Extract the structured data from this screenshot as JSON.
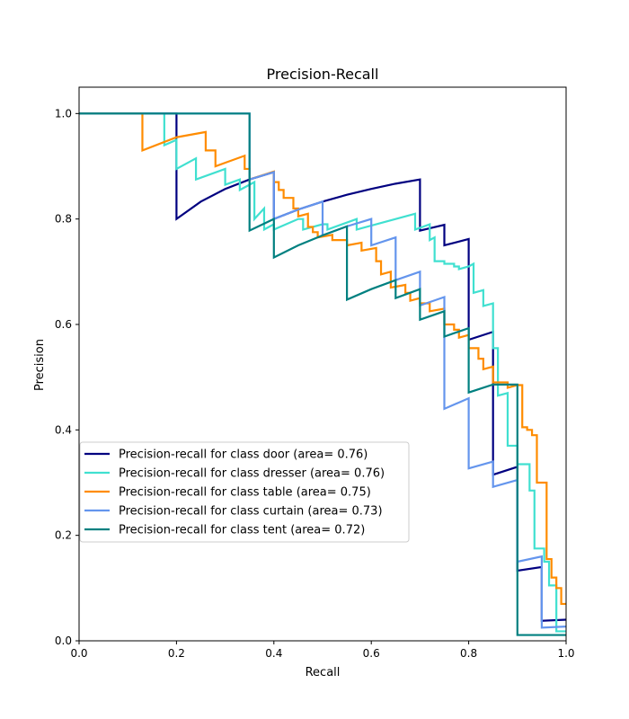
{
  "chart_data": {
    "type": "line",
    "title": "Precision-Recall",
    "xlabel": "Recall",
    "ylabel": "Precision",
    "xlim": [
      0.0,
      1.0
    ],
    "ylim": [
      0.0,
      1.05
    ],
    "xticks": [
      0.0,
      0.2,
      0.4,
      0.6,
      0.8,
      1.0
    ],
    "xtick_labels": [
      "0.0",
      "0.2",
      "0.4",
      "0.6",
      "0.8",
      "1.0"
    ],
    "yticks": [
      0.0,
      0.2,
      0.4,
      0.6,
      0.8,
      1.0
    ],
    "ytick_labels": [
      "0.0",
      "0.2",
      "0.4",
      "0.6",
      "0.8",
      "1.0"
    ],
    "grid": false,
    "legend_position": "lower-left",
    "series": [
      {
        "name": "Precision-recall for class door (area= 0.76)",
        "color": "#000080",
        "points": [
          [
            0.0,
            1.0
          ],
          [
            0.2,
            1.0
          ],
          [
            0.2,
            0.8
          ],
          [
            0.25,
            0.833
          ],
          [
            0.3,
            0.857
          ],
          [
            0.35,
            0.875
          ],
          [
            0.4,
            0.889
          ],
          [
            0.4,
            0.8
          ],
          [
            0.45,
            0.818
          ],
          [
            0.5,
            0.833
          ],
          [
            0.55,
            0.846
          ],
          [
            0.6,
            0.857
          ],
          [
            0.65,
            0.867
          ],
          [
            0.7,
            0.875
          ],
          [
            0.7,
            0.778
          ],
          [
            0.75,
            0.789
          ],
          [
            0.75,
            0.75
          ],
          [
            0.8,
            0.762
          ],
          [
            0.8,
            0.571
          ],
          [
            0.85,
            0.586
          ],
          [
            0.85,
            0.315
          ],
          [
            0.9,
            0.33
          ],
          [
            0.9,
            0.133
          ],
          [
            0.95,
            0.14
          ],
          [
            0.95,
            0.038
          ],
          [
            1.0,
            0.04
          ]
        ]
      },
      {
        "name": "Precision-recall for class dresser (area= 0.76)",
        "color": "#40E0D0",
        "points": [
          [
            0.0,
            1.0
          ],
          [
            0.175,
            1.0
          ],
          [
            0.175,
            0.94
          ],
          [
            0.2,
            0.95
          ],
          [
            0.2,
            0.895
          ],
          [
            0.24,
            0.915
          ],
          [
            0.24,
            0.875
          ],
          [
            0.3,
            0.895
          ],
          [
            0.3,
            0.865
          ],
          [
            0.33,
            0.875
          ],
          [
            0.33,
            0.855
          ],
          [
            0.36,
            0.87
          ],
          [
            0.36,
            0.8
          ],
          [
            0.38,
            0.82
          ],
          [
            0.38,
            0.78
          ],
          [
            0.4,
            0.79
          ],
          [
            0.4,
            0.78
          ],
          [
            0.45,
            0.8
          ],
          [
            0.46,
            0.8
          ],
          [
            0.46,
            0.78
          ],
          [
            0.5,
            0.79
          ],
          [
            0.51,
            0.79
          ],
          [
            0.51,
            0.78
          ],
          [
            0.57,
            0.8
          ],
          [
            0.57,
            0.78
          ],
          [
            0.69,
            0.81
          ],
          [
            0.69,
            0.78
          ],
          [
            0.72,
            0.79
          ],
          [
            0.72,
            0.76
          ],
          [
            0.73,
            0.765
          ],
          [
            0.73,
            0.72
          ],
          [
            0.75,
            0.72
          ],
          [
            0.75,
            0.715
          ],
          [
            0.77,
            0.715
          ],
          [
            0.77,
            0.71
          ],
          [
            0.78,
            0.71
          ],
          [
            0.78,
            0.705
          ],
          [
            0.8,
            0.71
          ],
          [
            0.81,
            0.715
          ],
          [
            0.81,
            0.66
          ],
          [
            0.83,
            0.665
          ],
          [
            0.83,
            0.635
          ],
          [
            0.85,
            0.64
          ],
          [
            0.85,
            0.555
          ],
          [
            0.86,
            0.555
          ],
          [
            0.86,
            0.465
          ],
          [
            0.88,
            0.47
          ],
          [
            0.88,
            0.37
          ],
          [
            0.9,
            0.37
          ],
          [
            0.9,
            0.335
          ],
          [
            0.925,
            0.335
          ],
          [
            0.925,
            0.285
          ],
          [
            0.935,
            0.285
          ],
          [
            0.935,
            0.175
          ],
          [
            0.955,
            0.175
          ],
          [
            0.955,
            0.15
          ],
          [
            0.965,
            0.15
          ],
          [
            0.965,
            0.105
          ],
          [
            0.98,
            0.105
          ],
          [
            0.98,
            0.018
          ],
          [
            1.0,
            0.018
          ]
        ]
      },
      {
        "name": "Precision-recall for class table (area= 0.75)",
        "color": "#FF8C00",
        "points": [
          [
            0.0,
            1.0
          ],
          [
            0.13,
            1.0
          ],
          [
            0.13,
            0.93
          ],
          [
            0.2,
            0.955
          ],
          [
            0.26,
            0.965
          ],
          [
            0.26,
            0.93
          ],
          [
            0.28,
            0.93
          ],
          [
            0.28,
            0.9
          ],
          [
            0.34,
            0.92
          ],
          [
            0.34,
            0.895
          ],
          [
            0.35,
            0.895
          ],
          [
            0.35,
            0.875
          ],
          [
            0.4,
            0.89
          ],
          [
            0.4,
            0.87
          ],
          [
            0.41,
            0.87
          ],
          [
            0.41,
            0.855
          ],
          [
            0.42,
            0.855
          ],
          [
            0.42,
            0.84
          ],
          [
            0.44,
            0.84
          ],
          [
            0.44,
            0.82
          ],
          [
            0.45,
            0.82
          ],
          [
            0.45,
            0.805
          ],
          [
            0.47,
            0.81
          ],
          [
            0.47,
            0.785
          ],
          [
            0.48,
            0.785
          ],
          [
            0.48,
            0.775
          ],
          [
            0.49,
            0.775
          ],
          [
            0.49,
            0.765
          ],
          [
            0.52,
            0.77
          ],
          [
            0.52,
            0.76
          ],
          [
            0.55,
            0.76
          ],
          [
            0.55,
            0.75
          ],
          [
            0.58,
            0.755
          ],
          [
            0.58,
            0.74
          ],
          [
            0.61,
            0.745
          ],
          [
            0.61,
            0.72
          ],
          [
            0.62,
            0.72
          ],
          [
            0.62,
            0.695
          ],
          [
            0.64,
            0.7
          ],
          [
            0.64,
            0.67
          ],
          [
            0.67,
            0.675
          ],
          [
            0.67,
            0.66
          ],
          [
            0.68,
            0.66
          ],
          [
            0.68,
            0.645
          ],
          [
            0.7,
            0.65
          ],
          [
            0.7,
            0.64
          ],
          [
            0.72,
            0.64
          ],
          [
            0.72,
            0.625
          ],
          [
            0.75,
            0.63
          ],
          [
            0.75,
            0.6
          ],
          [
            0.77,
            0.6
          ],
          [
            0.77,
            0.59
          ],
          [
            0.78,
            0.59
          ],
          [
            0.78,
            0.575
          ],
          [
            0.8,
            0.58
          ],
          [
            0.8,
            0.555
          ],
          [
            0.82,
            0.555
          ],
          [
            0.82,
            0.535
          ],
          [
            0.83,
            0.535
          ],
          [
            0.83,
            0.515
          ],
          [
            0.85,
            0.52
          ],
          [
            0.85,
            0.49
          ],
          [
            0.88,
            0.49
          ],
          [
            0.88,
            0.48
          ],
          [
            0.9,
            0.485
          ],
          [
            0.91,
            0.485
          ],
          [
            0.91,
            0.405
          ],
          [
            0.92,
            0.405
          ],
          [
            0.92,
            0.4
          ],
          [
            0.93,
            0.4
          ],
          [
            0.93,
            0.39
          ],
          [
            0.94,
            0.39
          ],
          [
            0.94,
            0.3
          ],
          [
            0.96,
            0.3
          ],
          [
            0.96,
            0.155
          ],
          [
            0.97,
            0.155
          ],
          [
            0.97,
            0.12
          ],
          [
            0.98,
            0.12
          ],
          [
            0.98,
            0.1
          ],
          [
            0.99,
            0.1
          ],
          [
            0.99,
            0.07
          ],
          [
            1.0,
            0.07
          ]
        ]
      },
      {
        "name": "Precision-recall for class curtain (area= 0.73)",
        "color": "#6495ED",
        "points": [
          [
            0.0,
            1.0
          ],
          [
            0.35,
            1.0
          ],
          [
            0.35,
            0.875
          ],
          [
            0.4,
            0.889
          ],
          [
            0.4,
            0.8
          ],
          [
            0.45,
            0.818
          ],
          [
            0.5,
            0.833
          ],
          [
            0.5,
            0.769
          ],
          [
            0.55,
            0.786
          ],
          [
            0.6,
            0.8
          ],
          [
            0.6,
            0.75
          ],
          [
            0.65,
            0.765
          ],
          [
            0.65,
            0.684
          ],
          [
            0.7,
            0.7
          ],
          [
            0.7,
            0.636
          ],
          [
            0.75,
            0.652
          ],
          [
            0.75,
            0.44
          ],
          [
            0.8,
            0.46
          ],
          [
            0.8,
            0.327
          ],
          [
            0.85,
            0.34
          ],
          [
            0.85,
            0.292
          ],
          [
            0.9,
            0.305
          ],
          [
            0.9,
            0.15
          ],
          [
            0.95,
            0.16
          ],
          [
            0.95,
            0.025
          ],
          [
            1.0,
            0.027
          ]
        ]
      },
      {
        "name": "Precision-recall for class tent (area= 0.72)",
        "color": "#008080",
        "points": [
          [
            0.0,
            1.0
          ],
          [
            0.35,
            1.0
          ],
          [
            0.35,
            0.778
          ],
          [
            0.4,
            0.8
          ],
          [
            0.4,
            0.727
          ],
          [
            0.45,
            0.75
          ],
          [
            0.5,
            0.769
          ],
          [
            0.55,
            0.786
          ],
          [
            0.55,
            0.647
          ],
          [
            0.6,
            0.667
          ],
          [
            0.65,
            0.684
          ],
          [
            0.65,
            0.65
          ],
          [
            0.7,
            0.667
          ],
          [
            0.7,
            0.609
          ],
          [
            0.75,
            0.625
          ],
          [
            0.75,
            0.577
          ],
          [
            0.8,
            0.593
          ],
          [
            0.8,
            0.471
          ],
          [
            0.85,
            0.486
          ],
          [
            0.9,
            0.486
          ],
          [
            0.9,
            0.011
          ],
          [
            1.0,
            0.011
          ]
        ]
      }
    ]
  }
}
